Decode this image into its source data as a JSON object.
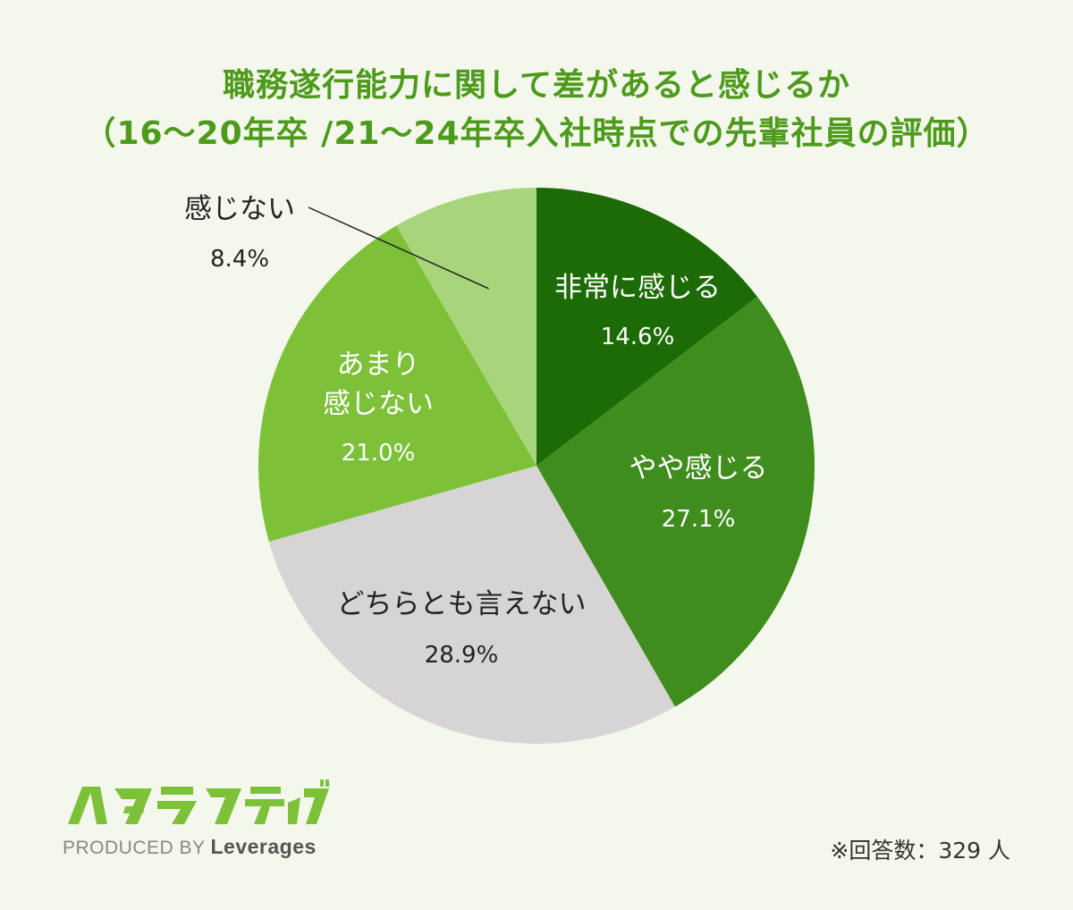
{
  "title_line1": "職務遂行能力に関して差があると感じるか",
  "title_line2": "（16～20年卒 /21～24年卒入社時点での先輩社員の評価）",
  "chart_data": {
    "type": "pie",
    "unit": "%",
    "start": "12 o'clock",
    "direction": "clockwise",
    "slices": [
      {
        "label": "非常に感じる",
        "value": 14.6,
        "display": "14.6%",
        "color": "#1c6b06",
        "text_color": "#ffffff"
      },
      {
        "label": "やや感じる",
        "value": 27.1,
        "display": "27.1%",
        "color": "#3f8d1c",
        "text_color": "#ffffff"
      },
      {
        "label": "どちらとも言えない",
        "value": 28.9,
        "display": "28.9%",
        "color": "#d7d4d5",
        "text_color": "#222222"
      },
      {
        "label_lines": [
          "あまり",
          "感じない"
        ],
        "label": "あまり感じない",
        "value": 21.0,
        "display": "21.0%",
        "color": "#7cc138",
        "text_color": "#ffffff"
      },
      {
        "label": "感じない",
        "value": 8.4,
        "display": "8.4%",
        "color": "#a8d57a",
        "text_color": "#222222",
        "callout": true
      }
    ]
  },
  "logo": {
    "text": "ハタラクティブ",
    "color": "#7cc138"
  },
  "produced_by": "PRODUCED BY",
  "brand": "Leverages",
  "footnote": "※回答数：329 人"
}
